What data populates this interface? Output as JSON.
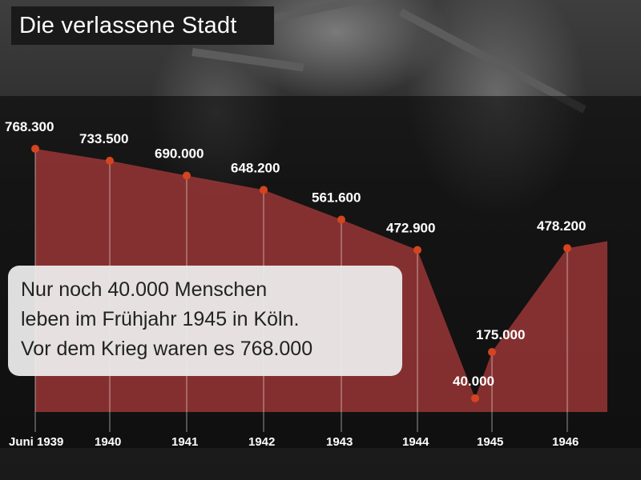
{
  "title": "Die verlassene Stadt",
  "note": {
    "lines": [
      "Nur noch 40.000 Menschen",
      "leben im Frühjahr 1945 in Köln.",
      "Vor dem Krieg waren es 768.000"
    ]
  },
  "colors": {
    "area_fill": "#b23b3b",
    "marker": "#d4451f",
    "band": "#0a0a0a",
    "title_bg": "#1a1a1a"
  },
  "chart_data": {
    "type": "area",
    "title": "",
    "xlabel": "",
    "ylabel": "",
    "ylim": [
      0,
      800000
    ],
    "grid": false,
    "tick_labels": [
      "Juni 1939",
      "1940",
      "1941",
      "1942",
      "1943",
      "1944",
      "1945",
      "1946"
    ],
    "points": [
      {
        "x": "Juni 1939",
        "y": 768300,
        "label": "768.300"
      },
      {
        "x": "1940",
        "y": 733500,
        "label": "733.500"
      },
      {
        "x": "1941",
        "y": 690000,
        "label": "690.000"
      },
      {
        "x": "1942",
        "y": 648200,
        "label": "648.200"
      },
      {
        "x": "1943",
        "y": 561600,
        "label": "561.600"
      },
      {
        "x": "1944",
        "y": 472900,
        "label": "472.900"
      },
      {
        "x": "Frühjahr 1945",
        "y": 40000,
        "label": "40.000"
      },
      {
        "x": "1945",
        "y": 175000,
        "label": "175.000"
      },
      {
        "x": "1946",
        "y": 478200,
        "label": "478.200"
      }
    ]
  }
}
